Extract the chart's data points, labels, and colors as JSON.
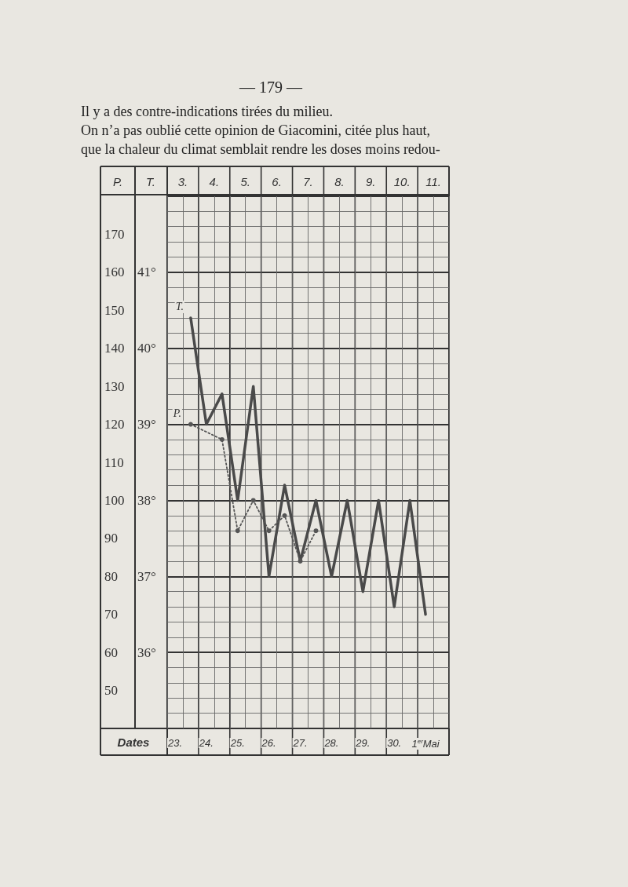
{
  "chart_data": {
    "type": "line",
    "title": "— 179 —",
    "xlabel": "Dates",
    "ylabel": "P.",
    "y2label": "T.",
    "categories": [
      "23.",
      null,
      "24.",
      null,
      "25.",
      null,
      "26.",
      null,
      "27.",
      null,
      "28.",
      null,
      "29.",
      null,
      "30.",
      null,
      "1$^{er}$Mai",
      null
    ],
    "series": [
      {
        "name": "T.",
        "axis": "y2",
        "color": "#4a4a4a",
        "marker": "none",
        "line_style": "solid",
        "values": [
          null,
          40.4,
          39.0,
          39.4,
          38.0,
          39.5,
          37.0,
          38.2,
          37.2,
          38.0,
          37.0,
          38.0,
          36.8,
          38.0,
          36.6,
          38.0,
          36.5,
          null
        ]
      },
      {
        "name": "P.",
        "color": "#555555",
        "marker": "circle",
        "line_style": "dotted",
        "values": [
          null,
          120,
          null,
          116,
          92,
          100,
          92,
          96,
          84,
          92,
          null,
          null,
          null,
          null,
          null,
          null,
          null,
          null
        ]
      }
    ],
    "ylim": [
      40,
      180
    ],
    "yticks": [
      50,
      60,
      70,
      80,
      90,
      100,
      110,
      120,
      130,
      140,
      150,
      160,
      170
    ],
    "y2lim": [
      35,
      42
    ],
    "y2ticks": [
      {
        "value": 36,
        "label": "36°"
      },
      {
        "value": 37,
        "label": "37°"
      },
      {
        "value": 38,
        "label": "38°"
      },
      {
        "value": 39,
        "label": "39°"
      },
      {
        "value": 40,
        "label": "40°"
      },
      {
        "value": 41,
        "label": "41°"
      }
    ],
    "grid": true,
    "legend": false,
    "annotations": [
      "Il y a des contre-indications tirées du milieu.",
      "On n’a pas oublié cette opinion de Giacomini, citée plus haut,",
      "que la chaleur du climat semblait rendre les doses moins redou-",
      "3.",
      "4.",
      "5.",
      "6.",
      "7.",
      "8.",
      "9.",
      "10.",
      "11."
    ]
  }
}
